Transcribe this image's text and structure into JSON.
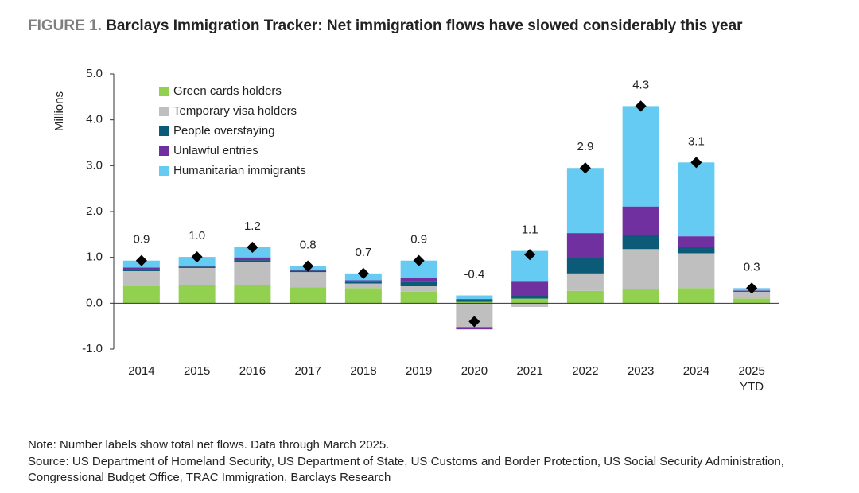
{
  "chart_data": {
    "type": "stacked_bar",
    "title_prefix": "FIGURE 1.",
    "title": "Barclays Immigration Tracker: Net immigration flows have slowed considerably this year",
    "y_label": "Millions",
    "categories": [
      "2014",
      "2015",
      "2016",
      "2017",
      "2018",
      "2019",
      "2020",
      "2021",
      "2022",
      "2023",
      "2024",
      "2025 YTD"
    ],
    "series": [
      {
        "name": "Green cards holders",
        "color": "#92d050",
        "values": [
          0.37,
          0.4,
          0.4,
          0.35,
          0.33,
          0.25,
          0.03,
          0.1,
          0.27,
          0.3,
          0.33,
          0.1
        ]
      },
      {
        "name": "Temporary visa holders",
        "color": "#bfbfbf",
        "values": [
          0.33,
          0.37,
          0.5,
          0.33,
          0.1,
          0.12,
          -0.52,
          -0.08,
          0.38,
          0.88,
          0.76,
          0.15
        ]
      },
      {
        "name": "People overstaying",
        "color": "#0b5a78",
        "values": [
          0.05,
          0.03,
          0.04,
          0.03,
          0.04,
          0.1,
          0.06,
          0.07,
          0.33,
          0.31,
          0.14,
          0.02
        ]
      },
      {
        "name": "Unlawful entries",
        "color": "#7030a0",
        "values": [
          0.03,
          0.02,
          0.06,
          0.02,
          0.03,
          0.08,
          -0.05,
          0.3,
          0.55,
          0.62,
          0.23,
          0.01
        ]
      },
      {
        "name": "Humanitarian immigrants",
        "color": "#66cbf2",
        "values": [
          0.15,
          0.19,
          0.22,
          0.08,
          0.15,
          0.38,
          0.08,
          0.67,
          1.42,
          2.19,
          1.61,
          0.05
        ]
      }
    ],
    "totals": [
      0.93,
      1.01,
      1.22,
      0.81,
      0.65,
      0.93,
      -0.4,
      1.06,
      2.95,
      4.3,
      3.07,
      0.33
    ],
    "total_labels": [
      "0.9",
      "1.0",
      "1.2",
      "0.8",
      "0.7",
      "0.9",
      "-0.4",
      "1.1",
      "2.9",
      "4.3",
      "3.1",
      "0.3"
    ],
    "total_color": "#000000",
    "ylim": [
      -1,
      5
    ],
    "yticks": [
      {
        "value": -1,
        "label": "-1.0"
      },
      {
        "value": 0,
        "label": "0.0"
      },
      {
        "value": 1,
        "label": "1.0"
      },
      {
        "value": 2,
        "label": "2.0"
      },
      {
        "value": 3,
        "label": "3.0"
      },
      {
        "value": 4,
        "label": "4.0"
      },
      {
        "value": 5,
        "label": "5.0"
      }
    ],
    "grid": false,
    "legend_position": "top-left",
    "note": "Note: Number labels show total net flows. Data through March 2025.",
    "source": "Source: US Department of Homeland Security, US Department of State, US Customs and Border Protection, US Social Security Administration, Congressional Budget Office, TRAC Immigration, Barclays Research"
  }
}
